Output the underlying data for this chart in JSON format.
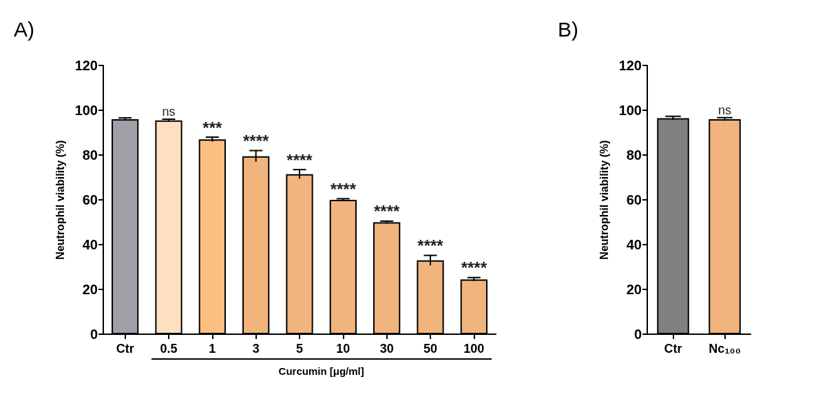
{
  "chart_data": [
    {
      "type": "bar",
      "title": "A)",
      "ylabel": "Neutrophil viability (%)",
      "xlabel": "Curcumin [μg/ml]",
      "categories": [
        "Ctr",
        "0.5",
        "1",
        "3",
        "5",
        "10",
        "30",
        "50",
        "100"
      ],
      "values": [
        96,
        95.5,
        87,
        79.5,
        71.5,
        60,
        50,
        33,
        24.5
      ],
      "colors": [
        "#a0a0a8",
        "#fde0c0",
        "#fdbf80",
        "#f0b47c",
        "#f0b47c",
        "#f0b47c",
        "#f0b47c",
        "#f0b47c",
        "#f0b47c"
      ],
      "errors": [
        0.6,
        0.5,
        1,
        2.5,
        2,
        0.5,
        0.5,
        2.2,
        0.8
      ],
      "ylim": [
        0,
        120
      ],
      "yticks": [
        0,
        20,
        40,
        60,
        80,
        100,
        120
      ],
      "grid": false,
      "annotations": [
        {
          "text": "ns",
          "x": "0.5",
          "y": 96
        },
        {
          "text": "***",
          "x": "1",
          "y": 88
        },
        {
          "text": "****",
          "x": "3",
          "y": 82
        },
        {
          "text": "****",
          "x": "5",
          "y": 73.5
        },
        {
          "text": "****",
          "x": "10",
          "y": 60.5
        },
        {
          "text": "****",
          "x": "30",
          "y": 50.5
        },
        {
          "text": "****",
          "x": "50",
          "y": 35.2
        },
        {
          "text": "****",
          "x": "100",
          "y": 25.3
        }
      ]
    },
    {
      "type": "bar",
      "title": "B)",
      "ylabel": "Neutrophil viability (%)",
      "categories": [
        "Ctr",
        "Nc₁₀₀"
      ],
      "values": [
        96.5,
        96
      ],
      "colors": [
        "#808080",
        "#f0b47c"
      ],
      "errors": [
        0.8,
        0.7
      ],
      "ylim": [
        0,
        120
      ],
      "yticks": [
        0,
        20,
        40,
        60,
        80,
        100,
        120
      ],
      "grid": false,
      "annotations": [
        {
          "text": "ns",
          "x": "Nc₁₀₀",
          "y": 96.7
        }
      ]
    }
  ]
}
